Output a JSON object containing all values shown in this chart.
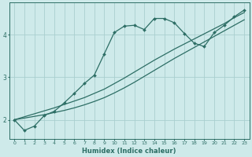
{
  "xlabel": "Humidex (Indice chaleur)",
  "bg_color": "#ceeaea",
  "line_color": "#2d6e65",
  "grid_color": "#aacfcf",
  "xlim": [
    -0.5,
    23.5
  ],
  "ylim": [
    1.55,
    4.75
  ],
  "xticks": [
    0,
    1,
    2,
    3,
    4,
    5,
    6,
    7,
    8,
    9,
    10,
    11,
    12,
    13,
    14,
    15,
    16,
    17,
    18,
    19,
    20,
    21,
    22,
    23
  ],
  "yticks": [
    2,
    3,
    4
  ],
  "curve1_x": [
    0,
    1,
    2,
    3,
    4,
    5,
    6,
    7,
    8,
    9,
    10,
    11,
    12,
    13,
    14,
    15,
    16,
    17,
    18,
    19,
    20,
    21,
    22,
    23
  ],
  "curve1_y": [
    2.0,
    1.75,
    1.85,
    2.1,
    2.2,
    2.4,
    2.62,
    2.85,
    3.05,
    3.55,
    4.05,
    4.2,
    4.22,
    4.12,
    4.38,
    4.38,
    4.28,
    4.03,
    3.8,
    3.72,
    4.05,
    4.22,
    4.42,
    4.58
  ],
  "curve2_x": [
    0,
    1,
    2,
    3,
    4,
    5,
    6,
    7,
    8,
    9,
    10,
    11,
    12,
    13,
    14,
    15,
    16,
    17,
    18,
    19,
    20,
    21,
    22,
    23
  ],
  "curve2_y": [
    2.0,
    2.07,
    2.14,
    2.21,
    2.28,
    2.36,
    2.44,
    2.52,
    2.62,
    2.72,
    2.85,
    2.98,
    3.12,
    3.26,
    3.4,
    3.53,
    3.66,
    3.78,
    3.9,
    4.02,
    4.14,
    4.26,
    4.4,
    4.52
  ],
  "curve3_x": [
    0,
    1,
    2,
    3,
    4,
    5,
    6,
    7,
    8,
    9,
    10,
    11,
    12,
    13,
    14,
    15,
    16,
    17,
    18,
    19,
    20,
    21,
    22,
    23
  ],
  "curve3_y": [
    2.0,
    2.04,
    2.08,
    2.12,
    2.17,
    2.22,
    2.28,
    2.35,
    2.43,
    2.52,
    2.63,
    2.75,
    2.88,
    3.02,
    3.16,
    3.3,
    3.44,
    3.57,
    3.7,
    3.83,
    3.96,
    4.09,
    4.22,
    4.35
  ]
}
